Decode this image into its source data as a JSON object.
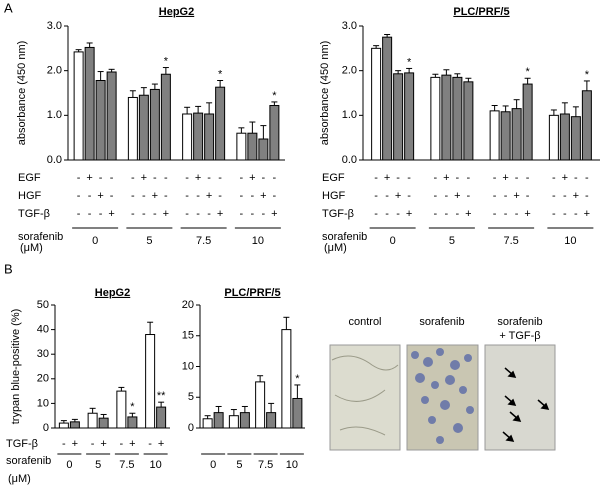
{
  "panels": [
    "A",
    "B"
  ],
  "chart_data": [
    {
      "type": "bar",
      "title": "HepG2",
      "y_label": "absorbance (450 nm)",
      "categories": [
        "0",
        "5",
        "7.5",
        "10"
      ],
      "ylim": [
        0,
        3
      ],
      "yticks": [
        {
          "value": 0,
          "label": "0.0"
        },
        {
          "value": 1,
          "label": "1.0"
        },
        {
          "value": 2,
          "label": "2.0"
        },
        {
          "value": 3,
          "label": "3.0"
        }
      ],
      "series": [
        {
          "color": "#ffffff",
          "values": [
            2.42,
            1.4,
            1.03,
            0.6
          ],
          "errors": [
            0.05,
            0.15,
            0.15,
            0.12
          ],
          "significance": [
            null,
            null,
            null,
            null
          ]
        },
        {
          "color": "#808080",
          "values": [
            2.52,
            1.45,
            1.05,
            0.6
          ],
          "errors": [
            0.1,
            0.17,
            0.15,
            0.25
          ],
          "significance": [
            null,
            null,
            null,
            null
          ]
        },
        {
          "color": "#808080",
          "values": [
            1.78,
            1.58,
            1.03,
            0.47
          ],
          "errors": [
            0.2,
            0.12,
            0.25,
            0.3
          ],
          "significance": [
            null,
            null,
            null,
            null
          ]
        },
        {
          "color": "#808080",
          "values": [
            1.97,
            1.92,
            1.63,
            1.22
          ],
          "errors": [
            0.06,
            0.15,
            0.15,
            0.08
          ],
          "significance": [
            null,
            "*",
            "*",
            "*"
          ]
        }
      ],
      "treatments": [
        {
          "label": "EGF",
          "signs": [
            "-",
            "+",
            "-",
            "-"
          ]
        },
        {
          "label": "HGF",
          "signs": [
            "-",
            "-",
            "+",
            "-"
          ]
        },
        {
          "label": "TGF-β",
          "signs": [
            "-",
            "-",
            "-",
            "+"
          ]
        }
      ],
      "group_label": "sorafenib",
      "group_unit": "(μM)"
    },
    {
      "type": "bar",
      "title": "PLC/PRF/5",
      "y_label": "absorbance (450 nm)",
      "categories": [
        "0",
        "5",
        "7.5",
        "10"
      ],
      "ylim": [
        0,
        3
      ],
      "yticks": [
        {
          "value": 0,
          "label": "0.0"
        },
        {
          "value": 1,
          "label": "1.0"
        },
        {
          "value": 2,
          "label": "2.0"
        },
        {
          "value": 3,
          "label": "3.0"
        }
      ],
      "series": [
        {
          "color": "#ffffff",
          "values": [
            2.5,
            1.85,
            1.1,
            1.0
          ],
          "errors": [
            0.06,
            0.07,
            0.12,
            0.12
          ],
          "significance": [
            null,
            null,
            null,
            null
          ]
        },
        {
          "color": "#808080",
          "values": [
            2.75,
            1.9,
            1.08,
            1.03
          ],
          "errors": [
            0.06,
            0.12,
            0.13,
            0.25
          ],
          "significance": [
            null,
            null,
            null,
            null
          ]
        },
        {
          "color": "#808080",
          "values": [
            1.93,
            1.85,
            1.15,
            0.97
          ],
          "errors": [
            0.07,
            0.08,
            0.2,
            0.22
          ],
          "significance": [
            null,
            null,
            null,
            null
          ]
        },
        {
          "color": "#808080",
          "values": [
            1.95,
            1.75,
            1.7,
            1.55
          ],
          "errors": [
            0.1,
            0.08,
            0.13,
            0.22
          ],
          "significance": [
            "*",
            null,
            "*",
            "*"
          ]
        }
      ],
      "treatments": [
        {
          "label": "EGF",
          "signs": [
            "-",
            "+",
            "-",
            "-"
          ]
        },
        {
          "label": "HGF",
          "signs": [
            "-",
            "-",
            "+",
            "-"
          ]
        },
        {
          "label": "TGF-β",
          "signs": [
            "-",
            "-",
            "-",
            "+"
          ]
        }
      ],
      "group_label": "sorafenib",
      "group_unit": "(μM)"
    },
    {
      "type": "bar",
      "title": "HepG2",
      "y_label": "trypan blue-positive (%)",
      "categories": [
        "0",
        "5",
        "7.5",
        "10"
      ],
      "ylim": [
        0,
        50
      ],
      "yticks": [
        0,
        10,
        20,
        30,
        40,
        50
      ],
      "series": [
        {
          "color": "#ffffff",
          "values": [
            2,
            6,
            15,
            38
          ],
          "errors": [
            1,
            2,
            1.5,
            5
          ],
          "significance": [
            null,
            null,
            null,
            null
          ]
        },
        {
          "color": "#808080",
          "values": [
            2.5,
            4,
            4.5,
            8.5
          ],
          "errors": [
            1,
            1.5,
            1.5,
            2
          ],
          "significance": [
            null,
            null,
            "*",
            "**"
          ]
        }
      ],
      "treatments": [
        {
          "label": "TGF-β",
          "signs": [
            "-",
            "+"
          ]
        }
      ],
      "group_label": "sorafenib",
      "group_unit": "(μM)"
    },
    {
      "type": "bar",
      "title": "PLC/PRF/5",
      "categories": [
        "0",
        "5",
        "7.5",
        "10"
      ],
      "ylim": [
        0,
        20
      ],
      "yticks": [
        0,
        5,
        10,
        15,
        20
      ],
      "series": [
        {
          "color": "#ffffff",
          "values": [
            1.5,
            2,
            7.5,
            16
          ],
          "errors": [
            0.5,
            1,
            1,
            2
          ],
          "significance": [
            null,
            null,
            null,
            null
          ]
        },
        {
          "color": "#808080",
          "values": [
            2.5,
            2.5,
            2.5,
            4.8
          ],
          "errors": [
            1,
            1,
            1.5,
            2.2
          ],
          "significance": [
            null,
            null,
            null,
            "*"
          ]
        }
      ],
      "treatments": [],
      "group_label": null,
      "group_unit": null
    }
  ],
  "images": {
    "captions": [
      [
        "control"
      ],
      [
        "sorafenib"
      ],
      [
        "sorafenib",
        "+ TGF-β"
      ]
    ]
  }
}
